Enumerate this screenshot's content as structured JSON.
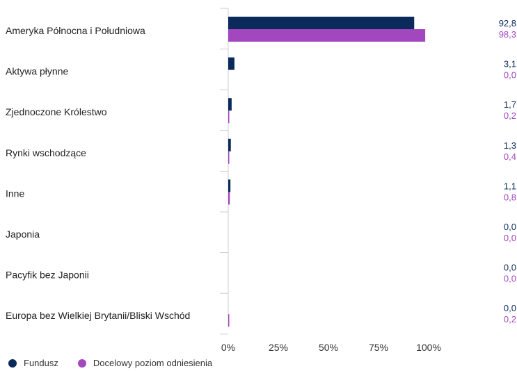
{
  "chart_data": {
    "type": "bar",
    "orientation": "horizontal",
    "categories": [
      "Ameryka Północna i Południowa",
      "Aktywa płynne",
      "Zjednoczone Królestwo",
      "Rynki wschodzące",
      "Inne",
      "Japonia",
      "Pacyfik bez Japonii",
      "Europa bez Wielkiej Brytanii/Bliski Wschód"
    ],
    "series": [
      {
        "name": "Fundusz",
        "color": "#0a2a5c",
        "values": [
          92.8,
          3.1,
          1.7,
          1.3,
          1.1,
          0.0,
          0.0,
          0.0
        ],
        "labels": [
          "92,8",
          "3,1",
          "1,7",
          "1,3",
          "1,1",
          "0,0",
          "0,0",
          "0,0"
        ]
      },
      {
        "name": "Docelowy poziom odniesienia",
        "color": "#a347be",
        "values": [
          98.3,
          0.0,
          0.2,
          0.4,
          0.8,
          0.0,
          0.0,
          0.2
        ],
        "labels": [
          "98,3",
          "0,0",
          "0,2",
          "0,4",
          "0,8",
          "0,0",
          "0,0",
          "0,2"
        ]
      }
    ],
    "x_ticks": [
      0,
      25,
      50,
      75,
      100
    ],
    "x_tick_labels": [
      "0%",
      "25%",
      "50%",
      "75%",
      "100%"
    ],
    "xlim": [
      0,
      122
    ],
    "grid": false,
    "legend_position": "bottom-left"
  }
}
